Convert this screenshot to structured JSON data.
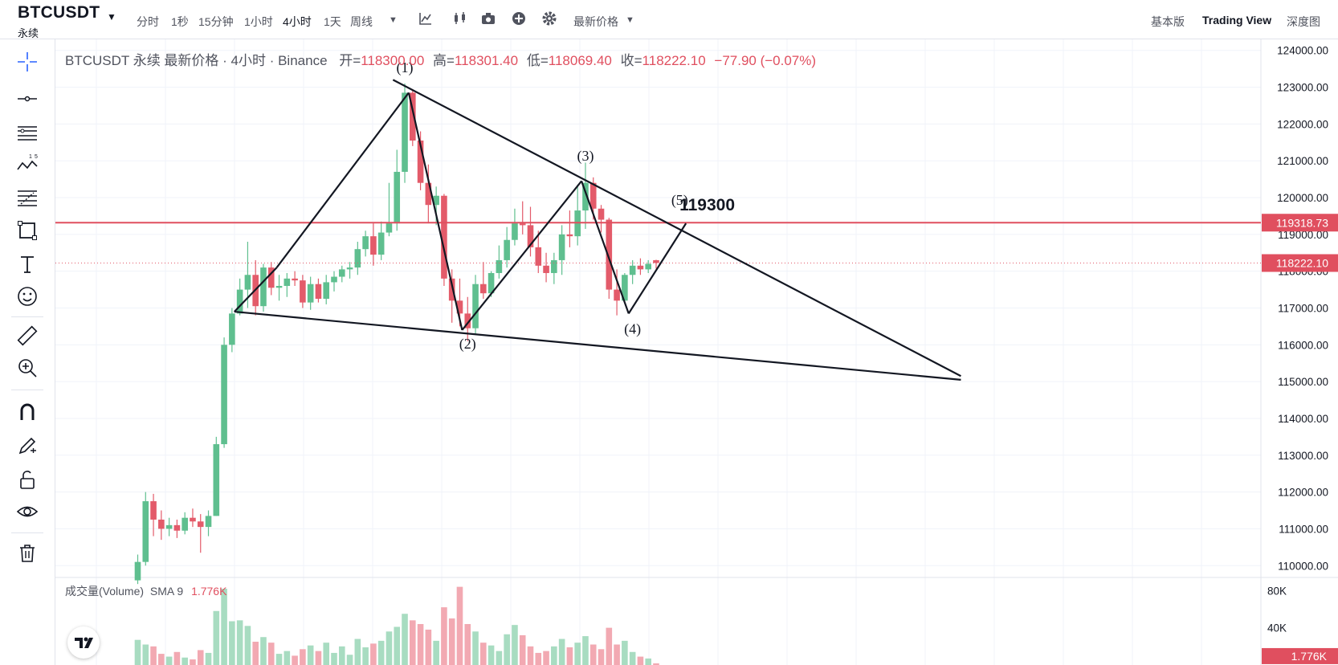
{
  "header": {
    "symbol": "BTCUSDT",
    "contract_type": "永续",
    "timeframes": [
      {
        "label": "分时",
        "active": false
      },
      {
        "label": "1秒",
        "active": false
      },
      {
        "label": "15分钟",
        "active": false
      },
      {
        "label": "1小时",
        "active": false
      },
      {
        "label": "4小时",
        "active": true
      },
      {
        "label": "1天",
        "active": false
      },
      {
        "label": "周线",
        "active": false
      }
    ],
    "price_type_label": "最新价格",
    "view_modes": [
      {
        "label": "基本版",
        "active": false
      },
      {
        "label": "Trading View",
        "active": true
      },
      {
        "label": "深度图",
        "active": false
      }
    ]
  },
  "legend": {
    "title": "BTCUSDT 永续 最新价格 · 4小时 · Binance",
    "open_label": "开=",
    "open": "118300.00",
    "high_label": "高=",
    "high": "118301.40",
    "low_label": "低=",
    "low": "118069.40",
    "close_label": "收=",
    "close": "118222.10",
    "change": "−77.90 (−0.07%)"
  },
  "volume_legend": {
    "label": "成交量(Volume)",
    "sma": "SMA 9",
    "value": "1.776K"
  },
  "colors": {
    "up": "#5fbf8f",
    "down": "#e35b6a",
    "vol_up": "#a8dcc1",
    "vol_down": "#f2a9b2",
    "resistance_line": "#e04f5f",
    "drawing": "#131722"
  },
  "chart_data": {
    "type": "candlestick",
    "ylim": [
      109700,
      124300
    ],
    "y_ticks": [
      "124000.00",
      "123000.00",
      "122000.00",
      "121000.00",
      "120000.00",
      "119000.00",
      "118000.00",
      "117000.00",
      "116000.00",
      "115000.00",
      "114000.00",
      "113000.00",
      "112000.00",
      "111000.00",
      "110000.00"
    ],
    "volume_ylim": [
      0,
      88000
    ],
    "volume_ticks": [
      "80K",
      "40K"
    ],
    "horizontal_line": {
      "price": 119318.73,
      "label": "119318.73"
    },
    "last_price": {
      "price": 118222.1,
      "label": "118222.10"
    },
    "last_volume_label": "1.776K",
    "candles": [
      {
        "o": 109600,
        "h": 110300,
        "l": 109500,
        "c": 110100,
        "v": 27000
      },
      {
        "o": 110100,
        "h": 112000,
        "l": 110000,
        "c": 111750,
        "v": 22000
      },
      {
        "o": 111750,
        "h": 111950,
        "l": 110800,
        "c": 111250,
        "v": 20000
      },
      {
        "o": 111250,
        "h": 111500,
        "l": 110700,
        "c": 111000,
        "v": 12000
      },
      {
        "o": 111000,
        "h": 111300,
        "l": 110800,
        "c": 111100,
        "v": 9000
      },
      {
        "o": 111100,
        "h": 111250,
        "l": 110750,
        "c": 110950,
        "v": 14000
      },
      {
        "o": 110950,
        "h": 111450,
        "l": 110850,
        "c": 111300,
        "v": 8000
      },
      {
        "o": 111300,
        "h": 111550,
        "l": 111050,
        "c": 111200,
        "v": 6000
      },
      {
        "o": 111200,
        "h": 111400,
        "l": 110350,
        "c": 111050,
        "v": 16000
      },
      {
        "o": 111050,
        "h": 111500,
        "l": 110800,
        "c": 111350,
        "v": 13000
      },
      {
        "o": 111350,
        "h": 113500,
        "l": 111350,
        "c": 113300,
        "v": 58000
      },
      {
        "o": 113300,
        "h": 116200,
        "l": 113200,
        "c": 116000,
        "v": 82000
      },
      {
        "o": 116000,
        "h": 117000,
        "l": 115800,
        "c": 116850,
        "v": 47000
      },
      {
        "o": 116850,
        "h": 117800,
        "l": 116800,
        "c": 117500,
        "v": 48000
      },
      {
        "o": 117500,
        "h": 118800,
        "l": 117000,
        "c": 117900,
        "v": 42000
      },
      {
        "o": 117900,
        "h": 118300,
        "l": 116800,
        "c": 117050,
        "v": 25000
      },
      {
        "o": 117050,
        "h": 118200,
        "l": 116900,
        "c": 118100,
        "v": 30000
      },
      {
        "o": 118100,
        "h": 118250,
        "l": 117350,
        "c": 117550,
        "v": 24000
      },
      {
        "o": 117550,
        "h": 117900,
        "l": 117200,
        "c": 117600,
        "v": 12000
      },
      {
        "o": 117600,
        "h": 117950,
        "l": 117300,
        "c": 117800,
        "v": 15000
      },
      {
        "o": 117800,
        "h": 118000,
        "l": 117600,
        "c": 117750,
        "v": 10000
      },
      {
        "o": 117750,
        "h": 117900,
        "l": 117000,
        "c": 117150,
        "v": 17000
      },
      {
        "o": 117150,
        "h": 117850,
        "l": 116950,
        "c": 117650,
        "v": 21000
      },
      {
        "o": 117650,
        "h": 117800,
        "l": 117150,
        "c": 117250,
        "v": 15000
      },
      {
        "o": 117250,
        "h": 117900,
        "l": 117100,
        "c": 117700,
        "v": 24000
      },
      {
        "o": 117700,
        "h": 118000,
        "l": 117450,
        "c": 117850,
        "v": 13000
      },
      {
        "o": 117850,
        "h": 118150,
        "l": 117700,
        "c": 118050,
        "v": 20000
      },
      {
        "o": 118050,
        "h": 118250,
        "l": 117800,
        "c": 118100,
        "v": 11000
      },
      {
        "o": 118100,
        "h": 118800,
        "l": 117900,
        "c": 118600,
        "v": 28000
      },
      {
        "o": 118600,
        "h": 119100,
        "l": 118400,
        "c": 118950,
        "v": 19000
      },
      {
        "o": 118950,
        "h": 119300,
        "l": 118150,
        "c": 118450,
        "v": 23000
      },
      {
        "o": 118450,
        "h": 119350,
        "l": 118300,
        "c": 119050,
        "v": 26000
      },
      {
        "o": 119050,
        "h": 120400,
        "l": 118950,
        "c": 119300,
        "v": 36000
      },
      {
        "o": 119300,
        "h": 121300,
        "l": 119100,
        "c": 120700,
        "v": 41000
      },
      {
        "o": 120700,
        "h": 123100,
        "l": 120400,
        "c": 122850,
        "v": 55000
      },
      {
        "o": 122850,
        "h": 122950,
        "l": 121400,
        "c": 121550,
        "v": 48000
      },
      {
        "o": 121550,
        "h": 121800,
        "l": 120200,
        "c": 120400,
        "v": 44000
      },
      {
        "o": 120400,
        "h": 120900,
        "l": 119300,
        "c": 119800,
        "v": 38000
      },
      {
        "o": 119800,
        "h": 120300,
        "l": 119250,
        "c": 120050,
        "v": 26000
      },
      {
        "o": 120050,
        "h": 120100,
        "l": 117600,
        "c": 117800,
        "v": 62000
      },
      {
        "o": 117800,
        "h": 118050,
        "l": 116600,
        "c": 117200,
        "v": 50000
      },
      {
        "o": 117200,
        "h": 117800,
        "l": 116500,
        "c": 116850,
        "v": 84000
      },
      {
        "o": 116850,
        "h": 117300,
        "l": 116100,
        "c": 116450,
        "v": 44000
      },
      {
        "o": 116450,
        "h": 117900,
        "l": 116300,
        "c": 117650,
        "v": 36000
      },
      {
        "o": 117650,
        "h": 118250,
        "l": 117250,
        "c": 117400,
        "v": 24000
      },
      {
        "o": 117400,
        "h": 118000,
        "l": 117300,
        "c": 117950,
        "v": 21000
      },
      {
        "o": 117950,
        "h": 118700,
        "l": 117800,
        "c": 118300,
        "v": 15000
      },
      {
        "o": 118300,
        "h": 119200,
        "l": 118100,
        "c": 118850,
        "v": 33000
      },
      {
        "o": 118850,
        "h": 119700,
        "l": 118700,
        "c": 119300,
        "v": 43000
      },
      {
        "o": 119300,
        "h": 119900,
        "l": 119000,
        "c": 119250,
        "v": 32000
      },
      {
        "o": 119250,
        "h": 119750,
        "l": 118400,
        "c": 118650,
        "v": 20000
      },
      {
        "o": 118650,
        "h": 119100,
        "l": 117950,
        "c": 118150,
        "v": 13000
      },
      {
        "o": 118150,
        "h": 118500,
        "l": 117700,
        "c": 117950,
        "v": 15000
      },
      {
        "o": 117950,
        "h": 118500,
        "l": 117650,
        "c": 118300,
        "v": 20000
      },
      {
        "o": 118300,
        "h": 119250,
        "l": 117900,
        "c": 119000,
        "v": 28000
      },
      {
        "o": 119000,
        "h": 119650,
        "l": 118650,
        "c": 118950,
        "v": 19000
      },
      {
        "o": 118950,
        "h": 120350,
        "l": 118700,
        "c": 119650,
        "v": 24000
      },
      {
        "o": 119650,
        "h": 120950,
        "l": 119150,
        "c": 120400,
        "v": 31000
      },
      {
        "o": 120400,
        "h": 120550,
        "l": 119400,
        "c": 119700,
        "v": 22000
      },
      {
        "o": 119700,
        "h": 119800,
        "l": 119050,
        "c": 119400,
        "v": 17000
      },
      {
        "o": 119400,
        "h": 119450,
        "l": 117250,
        "c": 117500,
        "v": 40000
      },
      {
        "o": 117500,
        "h": 118050,
        "l": 116800,
        "c": 117200,
        "v": 22000
      },
      {
        "o": 117200,
        "h": 117950,
        "l": 117150,
        "c": 117900,
        "v": 26000
      },
      {
        "o": 117900,
        "h": 118300,
        "l": 117650,
        "c": 118150,
        "v": 14000
      },
      {
        "o": 118150,
        "h": 118350,
        "l": 117900,
        "c": 118050,
        "v": 9000
      },
      {
        "o": 118050,
        "h": 118300,
        "l": 117950,
        "c": 118200,
        "v": 7000
      },
      {
        "o": 118300,
        "h": 118310,
        "l": 118070,
        "c": 118222,
        "v": 1776
      }
    ],
    "annotations": {
      "labels": [
        {
          "text": "(1)",
          "idx": 34,
          "price": 123400
        },
        {
          "text": "(2)",
          "idx": 42,
          "price": 115900
        },
        {
          "text": "(3)",
          "idx": 57,
          "price": 121000
        },
        {
          "text": "(4)",
          "idx": 63,
          "price": 116300
        },
        {
          "text": "(5)",
          "idx": 69,
          "price": 119800
        },
        {
          "text": "119300",
          "idx": 72.5,
          "price": 119650
        }
      ],
      "waves": [
        {
          "x0": 12.3,
          "y0": 116900,
          "x1": 17.7,
          "y1": 118100
        },
        {
          "x0": 17.7,
          "y0": 118100,
          "x1": 34.5,
          "y1": 122850
        },
        {
          "x0": 34.5,
          "y0": 122850,
          "x1": 41.3,
          "y1": 116400
        },
        {
          "x0": 41.3,
          "y0": 116400,
          "x1": 56.5,
          "y1": 120450
        },
        {
          "x0": 56.5,
          "y0": 120450,
          "x1": 62.5,
          "y1": 116850
        },
        {
          "x0": 62.5,
          "y0": 116850,
          "x1": 69.8,
          "y1": 119300
        }
      ],
      "trendlines": [
        {
          "x0": 32.5,
          "y0": 123200,
          "x1": 104.8,
          "y1": 115150
        },
        {
          "x0": 12.3,
          "y0": 116900,
          "x1": 104.8,
          "y1": 115050
        }
      ]
    }
  }
}
